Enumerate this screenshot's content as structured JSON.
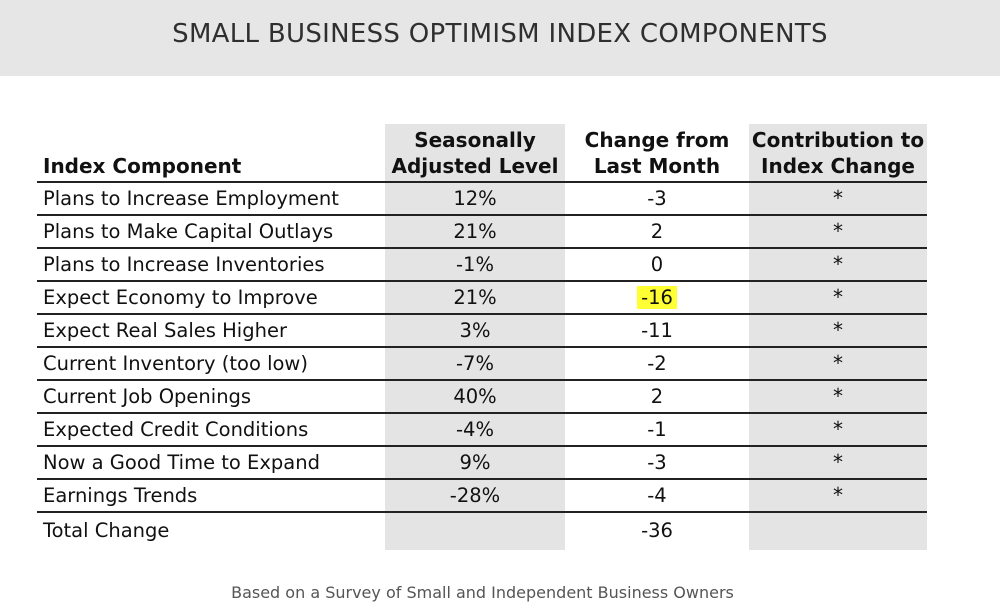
{
  "title": "SMALL BUSINESS OPTIMISM INDEX COMPONENTS",
  "footer": "Based on a Survey of Small and Independent Business Owners",
  "colors": {
    "banner": "#e6e6e6",
    "column_shade": "#e4e4e4",
    "highlight": "#ffff33"
  },
  "chart_data": {
    "type": "table",
    "title": "SMALL BUSINESS OPTIMISM INDEX COMPONENTS",
    "headers": {
      "component": "Index Component",
      "level": [
        "Seasonally",
        "Adjusted Level"
      ],
      "change": [
        "Change from",
        "Last Month"
      ],
      "contribution": [
        "Contribution to",
        "Index Change"
      ]
    },
    "rows": [
      {
        "component": "Plans to Increase Employment",
        "level": "12%",
        "change": "-3",
        "contribution": "*"
      },
      {
        "component": "Plans to Make Capital Outlays",
        "level": "21%",
        "change": "2",
        "contribution": "*"
      },
      {
        "component": "Plans to Increase Inventories",
        "level": "-1%",
        "change": "0",
        "contribution": "*"
      },
      {
        "component": "Expect Economy to Improve",
        "level": "21%",
        "change": "-16",
        "contribution": "*",
        "highlight": true
      },
      {
        "component": "Expect Real Sales Higher",
        "level": "3%",
        "change": "-11",
        "contribution": "*"
      },
      {
        "component": "Current Inventory (too low)",
        "level": "-7%",
        "change": "-2",
        "contribution": "*"
      },
      {
        "component": "Current Job Openings",
        "level": "40%",
        "change": "2",
        "contribution": "*"
      },
      {
        "component": "Expected Credit Conditions",
        "level": "-4%",
        "change": "-1",
        "contribution": "*"
      },
      {
        "component": "Now a Good Time to Expand",
        "level": "9%",
        "change": "-3",
        "contribution": "*"
      },
      {
        "component": "Earnings Trends",
        "level": "-28%",
        "change": "-4",
        "contribution": "*"
      }
    ],
    "total": {
      "component": "Total Change",
      "level": "",
      "change": "-36",
      "contribution": ""
    }
  }
}
